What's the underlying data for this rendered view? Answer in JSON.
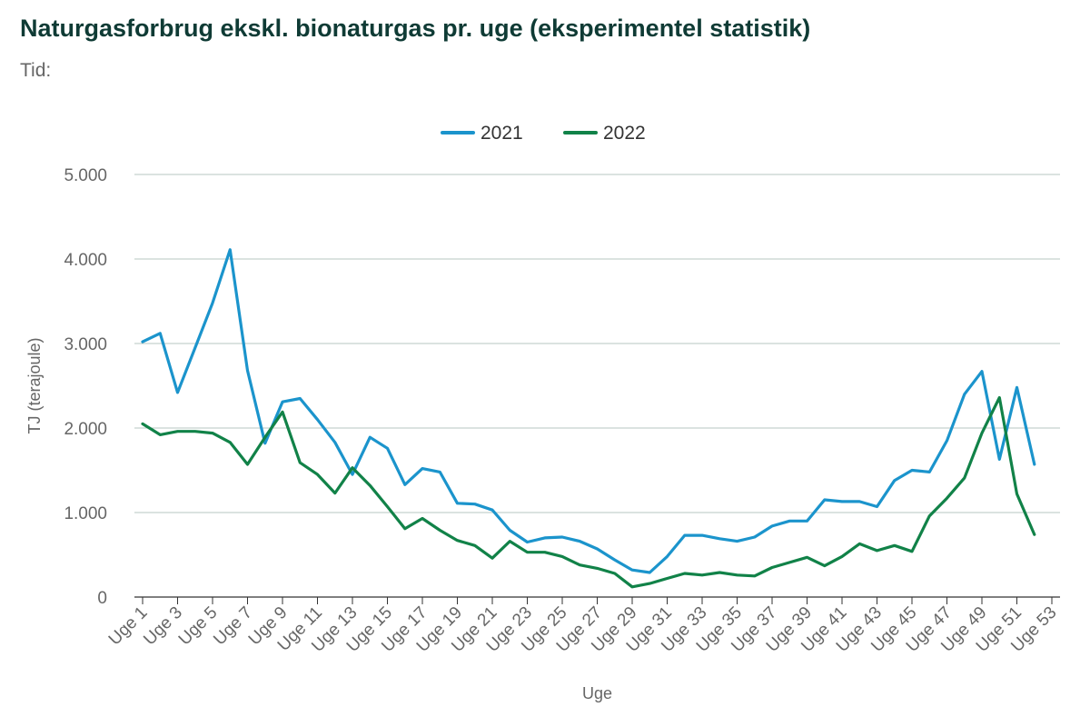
{
  "chart_data": {
    "type": "line",
    "title": "Naturgasforbrug ekskl. bionaturgas pr. uge (eksperimentel statistik)",
    "subtitle": "Tid:",
    "xlabel": "Uge",
    "ylabel": "TJ (terajoule)",
    "ylim": [
      0,
      5000
    ],
    "y_ticks": [
      "0",
      "1.000",
      "2.000",
      "3.000",
      "4.000",
      "5.000"
    ],
    "grid": true,
    "legend_position": "top-center",
    "categories": [
      "Uge 1",
      "Uge 2",
      "Uge 3",
      "Uge 4",
      "Uge 5",
      "Uge 6",
      "Uge 7",
      "Uge 8",
      "Uge 9",
      "Uge 10",
      "Uge 11",
      "Uge 12",
      "Uge 13",
      "Uge 14",
      "Uge 15",
      "Uge 16",
      "Uge 17",
      "Uge 18",
      "Uge 19",
      "Uge 20",
      "Uge 21",
      "Uge 22",
      "Uge 23",
      "Uge 24",
      "Uge 25",
      "Uge 26",
      "Uge 27",
      "Uge 28",
      "Uge 29",
      "Uge 30",
      "Uge 31",
      "Uge 32",
      "Uge 33",
      "Uge 34",
      "Uge 35",
      "Uge 36",
      "Uge 37",
      "Uge 38",
      "Uge 39",
      "Uge 40",
      "Uge 41",
      "Uge 42",
      "Uge 43",
      "Uge 44",
      "Uge 45",
      "Uge 46",
      "Uge 47",
      "Uge 48",
      "Uge 49",
      "Uge 50",
      "Uge 51",
      "Uge 52",
      "Uge 53"
    ],
    "x_tick_labels": [
      "Uge 1",
      "Uge 3",
      "Uge 5",
      "Uge 7",
      "Uge 9",
      "Uge 11",
      "Uge 13",
      "Uge 15",
      "Uge 17",
      "Uge 19",
      "Uge 21",
      "Uge 23",
      "Uge 25",
      "Uge 27",
      "Uge 29",
      "Uge 31",
      "Uge 33",
      "Uge 35",
      "Uge 37",
      "Uge 39",
      "Uge 41",
      "Uge 43",
      "Uge 45",
      "Uge 47",
      "Uge 49",
      "Uge 51",
      "Uge 53"
    ],
    "series": [
      {
        "name": "2021",
        "color": "#1b94cc",
        "values": [
          3020,
          3120,
          2420,
          2950,
          3480,
          4110,
          2680,
          1820,
          2310,
          2350,
          2100,
          1830,
          1450,
          1890,
          1760,
          1330,
          1520,
          1480,
          1110,
          1100,
          1030,
          790,
          650,
          700,
          710,
          660,
          570,
          440,
          320,
          290,
          480,
          730,
          730,
          690,
          660,
          710,
          840,
          900,
          900,
          1150,
          1130,
          1130,
          1070,
          1380,
          1500,
          1480,
          1850,
          2400,
          2670,
          1630,
          2480,
          1570,
          null
        ]
      },
      {
        "name": "2022",
        "color": "#118248",
        "values": [
          2050,
          1920,
          1960,
          1960,
          1940,
          1830,
          1570,
          1890,
          2190,
          1590,
          1450,
          1230,
          1530,
          1320,
          1070,
          810,
          930,
          790,
          670,
          610,
          460,
          660,
          530,
          530,
          480,
          380,
          340,
          280,
          120,
          160,
          220,
          280,
          260,
          290,
          260,
          250,
          350,
          410,
          470,
          370,
          480,
          630,
          550,
          610,
          540,
          960,
          1170,
          1410,
          1940,
          2360,
          1220,
          740,
          null
        ]
      }
    ]
  }
}
